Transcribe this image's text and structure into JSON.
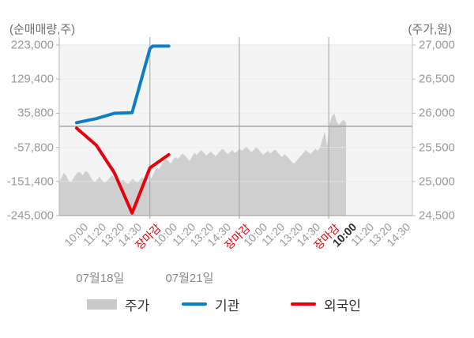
{
  "colors": {
    "plot_background": "#f4f4f4",
    "gridline": "#e3e3e3",
    "zero_line": "#8c8c8c",
    "day_separator": "#a3a3a3",
    "axis_line": "#9c9c9c",
    "price_area": "#cfcfcf",
    "institution_line": "#0d7dc4",
    "foreigner_line": "#e8000b",
    "close_label": "#e8000b"
  },
  "axis_titles": {
    "left": "(순매매량,주)",
    "right": "(주가,원)"
  },
  "legend": [
    {
      "label": "주가",
      "swatch": "area",
      "color": "#c9c9c9"
    },
    {
      "label": "기관",
      "swatch": "line",
      "color": "#0d7dc4"
    },
    {
      "label": "외국인",
      "swatch": "line",
      "color": "#e8000b"
    }
  ],
  "chart_data": {
    "type": "mixed",
    "x_axis": {
      "ticks_per_day": 5,
      "tick_labels": [
        {
          "text": "10:00",
          "variant": "normal"
        },
        {
          "text": "11:20",
          "variant": "normal"
        },
        {
          "text": "13:20",
          "variant": "normal"
        },
        {
          "text": "14:30",
          "variant": "normal"
        },
        {
          "text": "장마감",
          "variant": "close"
        },
        {
          "text": "10:00",
          "variant": "normal"
        },
        {
          "text": "11:20",
          "variant": "normal"
        },
        {
          "text": "13:20",
          "variant": "normal"
        },
        {
          "text": "14:30",
          "variant": "normal"
        },
        {
          "text": "장마감",
          "variant": "close"
        },
        {
          "text": "10:00",
          "variant": "normal"
        },
        {
          "text": "11:20",
          "variant": "normal"
        },
        {
          "text": "13:20",
          "variant": "normal"
        },
        {
          "text": "14:30",
          "variant": "normal"
        },
        {
          "text": "장마감",
          "variant": "close"
        },
        {
          "text": "10:00",
          "variant": "current"
        },
        {
          "text": "11:20",
          "variant": "normal"
        },
        {
          "text": "13:20",
          "variant": "normal"
        },
        {
          "text": "14:30",
          "variant": "normal"
        }
      ],
      "date_labels": [
        {
          "text": "07월18일",
          "day_index": 0
        },
        {
          "text": "07월21일",
          "day_index": 1
        }
      ]
    },
    "left_axis": {
      "title": "(순매매량,주)",
      "unit": "주",
      "min": -245000,
      "max": 223000,
      "tick_labels": [
        "223,000",
        "129,400",
        "35,800",
        "-57,800",
        "-151,400",
        "-245,000"
      ]
    },
    "right_axis": {
      "title": "(주가,원)",
      "unit": "원",
      "min": 24500,
      "max": 27000,
      "tick_labels": [
        "27,000",
        "26,500",
        "26,000",
        "25,500",
        "25,000",
        "24,500"
      ]
    },
    "zero_line_value": 0,
    "series": [
      {
        "name": "주가",
        "type": "area",
        "axis": "right",
        "color": "#cfcfcf",
        "t_start": -1.074,
        "t_step": 0.1326,
        "values": [
          24990,
          25060,
          25130,
          25080,
          25010,
          24990,
          25050,
          25100,
          25140,
          25130,
          25090,
          25150,
          25140,
          25080,
          25020,
          24990,
          25030,
          25070,
          25020,
          24980,
          25000,
          25040,
          25090,
          25060,
          25010,
          24970,
          25000,
          25030,
          24990,
          24960,
          25000,
          25040,
          25010,
          24980,
          25020,
          25060,
          25030,
          24990,
          25010,
          25060,
          25130,
          25210,
          25180,
          25240,
          25290,
          25330,
          25300,
          25260,
          25320,
          25360,
          25330,
          25370,
          25410,
          25380,
          25340,
          25300,
          25360,
          25420,
          25390,
          25430,
          25460,
          25420,
          25380,
          25410,
          25440,
          25400,
          25370,
          25410,
          25450,
          25480,
          25440,
          25400,
          25430,
          25460,
          25420,
          25440,
          25480,
          25450,
          25480,
          25510,
          25470,
          25430,
          25460,
          25500,
          25470,
          25430,
          25390,
          25420,
          25450,
          25410,
          25440,
          25470,
          25430,
          25390,
          25360,
          25400,
          25370,
          25330,
          25290,
          25260,
          25300,
          25340,
          25380,
          25420,
          25460,
          25430,
          25400,
          25440,
          25480,
          25450,
          25500,
          25620,
          25730,
          25520,
          25850,
          25950,
          26000,
          25880,
          25830,
          25880,
          25900,
          25860
        ]
      },
      {
        "name": "기관",
        "type": "line",
        "axis": "left",
        "color": "#0d7dc4",
        "points": [
          [
            -0.1,
            10000
          ],
          [
            1,
            21000
          ],
          [
            2,
            35500
          ],
          [
            3,
            37500
          ],
          [
            4,
            213000
          ],
          [
            4.15,
            220000
          ],
          [
            5.05,
            220000
          ]
        ]
      },
      {
        "name": "외국인",
        "type": "line",
        "axis": "left",
        "color": "#e8000b",
        "points": [
          [
            -0.1,
            -5000
          ],
          [
            1,
            -52000
          ],
          [
            2,
            -127000
          ],
          [
            3,
            -238000
          ],
          [
            4,
            -114000
          ],
          [
            5.05,
            -78000
          ]
        ]
      }
    ]
  }
}
